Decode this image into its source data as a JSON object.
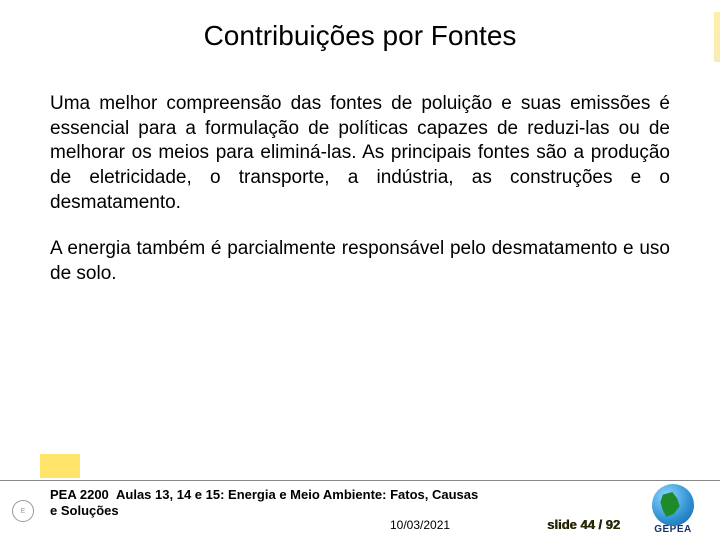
{
  "title": "Contribuições por Fontes",
  "paragraphs": {
    "p1": "Uma melhor compreensão das fontes de poluição e suas emissões é essencial para a formulação de políticas capazes de reduzi-las ou de melhorar os meios para eliminá-las. As principais fontes são a produção de eletricidade, o transporte, a indústria, as construções e o desmatamento.",
    "p2": "A energia também é parcialmente responsável pelo desmatamento e uso de solo."
  },
  "footer": {
    "course": "PEA 2200",
    "lecture": "Aulas 13, 14 e 15: Energia e Meio Ambiente: Fatos, Causas",
    "lecture2": "e Soluções",
    "date": "10/03/2021",
    "slidecount": "slide 44 / 92",
    "logo_label": "GEPEA"
  },
  "colors": {
    "background": "#ffffff",
    "text": "#000000",
    "accent_yellow": "#ffe36b",
    "globe_sea": "#2b8fd0",
    "globe_land": "#1f8a2a",
    "logo_text": "#16366b"
  }
}
